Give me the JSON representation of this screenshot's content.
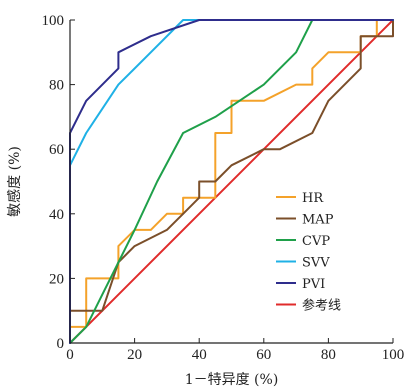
{
  "chart_data": {
    "type": "line",
    "xlabel": "1－特异度 (%)",
    "ylabel": "敏感度 (%)",
    "xlim": [
      0,
      100
    ],
    "ylim": [
      0,
      100
    ],
    "xticks": [
      "0",
      "20",
      "40",
      "60",
      "80",
      "100"
    ],
    "yticks": [
      "0",
      "20",
      "40",
      "60",
      "80",
      "100"
    ],
    "grid": false,
    "legend_position": "bottom-right",
    "series": [
      {
        "name": "HR",
        "color": "#F4A22A",
        "points": [
          [
            0,
            0
          ],
          [
            0,
            5
          ],
          [
            5,
            5
          ],
          [
            5,
            20
          ],
          [
            10,
            20
          ],
          [
            15,
            20
          ],
          [
            15,
            30
          ],
          [
            20,
            35
          ],
          [
            25,
            35
          ],
          [
            30,
            40
          ],
          [
            35,
            40
          ],
          [
            35,
            45
          ],
          [
            45,
            45
          ],
          [
            45,
            65
          ],
          [
            50,
            65
          ],
          [
            50,
            75
          ],
          [
            60,
            75
          ],
          [
            70,
            80
          ],
          [
            75,
            80
          ],
          [
            75,
            85
          ],
          [
            80,
            90
          ],
          [
            90,
            90
          ],
          [
            90,
            95
          ],
          [
            95,
            95
          ],
          [
            95,
            100
          ],
          [
            100,
            100
          ]
        ]
      },
      {
        "name": "MAP",
        "color": "#7B4F2A",
        "points": [
          [
            0,
            0
          ],
          [
            0,
            10
          ],
          [
            10,
            10
          ],
          [
            15,
            25
          ],
          [
            20,
            30
          ],
          [
            30,
            35
          ],
          [
            35,
            40
          ],
          [
            40,
            45
          ],
          [
            40,
            50
          ],
          [
            45,
            50
          ],
          [
            50,
            55
          ],
          [
            60,
            60
          ],
          [
            65,
            60
          ],
          [
            75,
            65
          ],
          [
            80,
            75
          ],
          [
            90,
            85
          ],
          [
            90,
            95
          ],
          [
            100,
            95
          ],
          [
            100,
            100
          ]
        ]
      },
      {
        "name": "CVP",
        "color": "#1FA04A",
        "points": [
          [
            0,
            0
          ],
          [
            5,
            5
          ],
          [
            10,
            15
          ],
          [
            20,
            35
          ],
          [
            27,
            50
          ],
          [
            35,
            65
          ],
          [
            45,
            70
          ],
          [
            60,
            80
          ],
          [
            70,
            90
          ],
          [
            75,
            100
          ],
          [
            100,
            100
          ]
        ]
      },
      {
        "name": "SVV",
        "color": "#1FB1E6",
        "points": [
          [
            0,
            0
          ],
          [
            0,
            55
          ],
          [
            5,
            65
          ],
          [
            15,
            80
          ],
          [
            25,
            90
          ],
          [
            35,
            100
          ],
          [
            100,
            100
          ]
        ]
      },
      {
        "name": "PVI",
        "color": "#2E2D8C",
        "points": [
          [
            0,
            0
          ],
          [
            0,
            65
          ],
          [
            5,
            75
          ],
          [
            15,
            85
          ],
          [
            15,
            90
          ],
          [
            25,
            95
          ],
          [
            40,
            100
          ],
          [
            100,
            100
          ]
        ]
      },
      {
        "name": "参考线",
        "color": "#E02B2B",
        "points": [
          [
            0,
            0
          ],
          [
            100,
            100
          ]
        ]
      }
    ]
  }
}
